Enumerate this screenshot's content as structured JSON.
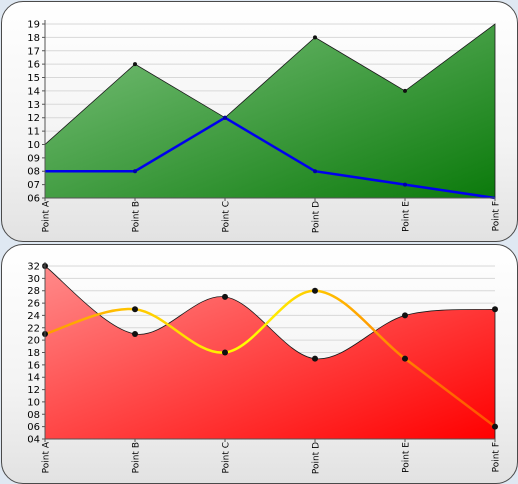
{
  "chart_data": [
    {
      "type": "area",
      "categories": [
        "Point A",
        "Point B",
        "Point C",
        "Point D",
        "Point E",
        "Point F"
      ],
      "series": [
        {
          "type": "area",
          "values": [
            10,
            16,
            12,
            18,
            14,
            19
          ],
          "color": "#1a8a1a"
        },
        {
          "type": "line",
          "values": [
            8,
            8,
            12,
            8,
            7,
            6
          ],
          "color": "#0000ee"
        }
      ],
      "ylim": [
        6,
        19
      ],
      "yticks": [
        "06",
        "07",
        "08",
        "09",
        "10",
        "11",
        "12",
        "13",
        "14",
        "15",
        "16",
        "17",
        "18",
        "19"
      ],
      "grid": true
    },
    {
      "type": "area",
      "categories": [
        "Point A",
        "Point B",
        "Point C",
        "Point D",
        "Point E",
        "Point F"
      ],
      "series": [
        {
          "type": "area",
          "values": [
            32,
            21,
            27,
            17,
            24,
            25
          ],
          "color": "#ff0000"
        },
        {
          "type": "line",
          "values": [
            21,
            25,
            18,
            28,
            17,
            6
          ],
          "color": "#ffff00"
        }
      ],
      "ylim": [
        4,
        32
      ],
      "yticks": [
        "04",
        "06",
        "08",
        "10",
        "12",
        "14",
        "16",
        "18",
        "20",
        "22",
        "24",
        "26",
        "28",
        "30",
        "32"
      ],
      "grid": true
    }
  ]
}
